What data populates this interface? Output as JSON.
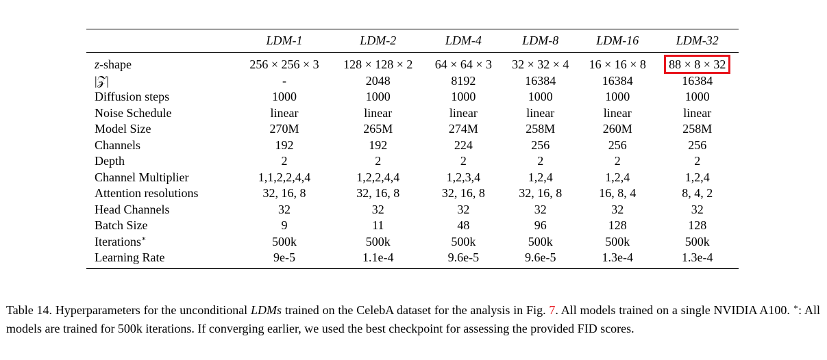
{
  "table": {
    "header": [
      "",
      "LDM-1",
      "LDM-2",
      "LDM-4",
      "LDM-8",
      "LDM-16",
      "LDM-32"
    ],
    "rows": [
      {
        "label_var": "z",
        "label_rest": "-shape",
        "cells": [
          "256 × 256 × 3",
          "128 × 128 × 2",
          "64 × 64 × 3",
          "32 × 32 × 4",
          "16 × 16 × 8",
          "88 × 8 × 32"
        ]
      },
      {
        "label": "|𝒵|",
        "cells": [
          "-",
          "2048",
          "8192",
          "16384",
          "16384",
          "16384"
        ]
      },
      {
        "label": "Diffusion steps",
        "cells": [
          "1000",
          "1000",
          "1000",
          "1000",
          "1000",
          "1000"
        ]
      },
      {
        "label": "Noise Schedule",
        "cells": [
          "linear",
          "linear",
          "linear",
          "linear",
          "linear",
          "linear"
        ]
      },
      {
        "label": "Model Size",
        "cells": [
          "270M",
          "265M",
          "274M",
          "258M",
          "260M",
          "258M"
        ]
      },
      {
        "label": "Channels",
        "cells": [
          "192",
          "192",
          "224",
          "256",
          "256",
          "256"
        ]
      },
      {
        "label": "Depth",
        "cells": [
          "2",
          "2",
          "2",
          "2",
          "2",
          "2"
        ]
      },
      {
        "label": "Channel Multiplier",
        "cells": [
          "1,1,2,2,4,4",
          "1,2,2,4,4",
          "1,2,3,4",
          "1,2,4",
          "1,2,4",
          "1,2,4"
        ]
      },
      {
        "label": "Attention resolutions",
        "cells": [
          "32, 16, 8",
          "32, 16, 8",
          "32, 16, 8",
          "32, 16, 8",
          "16, 8, 4",
          "8, 4, 2"
        ]
      },
      {
        "label": "Head Channels",
        "cells": [
          "32",
          "32",
          "32",
          "32",
          "32",
          "32"
        ]
      },
      {
        "label": "Batch Size",
        "cells": [
          "9",
          "11",
          "48",
          "96",
          "128",
          "128"
        ]
      },
      {
        "label": "Iterations",
        "label_sup": "∗",
        "cells": [
          "500k",
          "500k",
          "500k",
          "500k",
          "500k",
          "500k"
        ]
      },
      {
        "label": "Learning Rate",
        "cells": [
          "9e-5",
          "1.1e-4",
          "9.6e-5",
          "9.6e-5",
          "1.3e-4",
          "1.3e-4"
        ]
      }
    ],
    "highlight": {
      "row": 0,
      "col": 5,
      "color": "#e8141c"
    }
  },
  "caption": {
    "prefix": "Table 14.  Hyperparameters for the unconditional ",
    "ldms": "LDMs",
    "middle": " trained on the CelebA dataset for the analysis in Fig. ",
    "fig_ref": "7",
    "after_ref": ". All models trained on a single NVIDIA A100. ",
    "sup": "∗",
    "suffix": ": All models are trained for 500k iterations. If converging earlier, we used the best checkpoint for assessing the provided FID scores."
  },
  "colors": {
    "link": "#e8141c",
    "highlight": "#e8141c",
    "text": "#000000"
  }
}
